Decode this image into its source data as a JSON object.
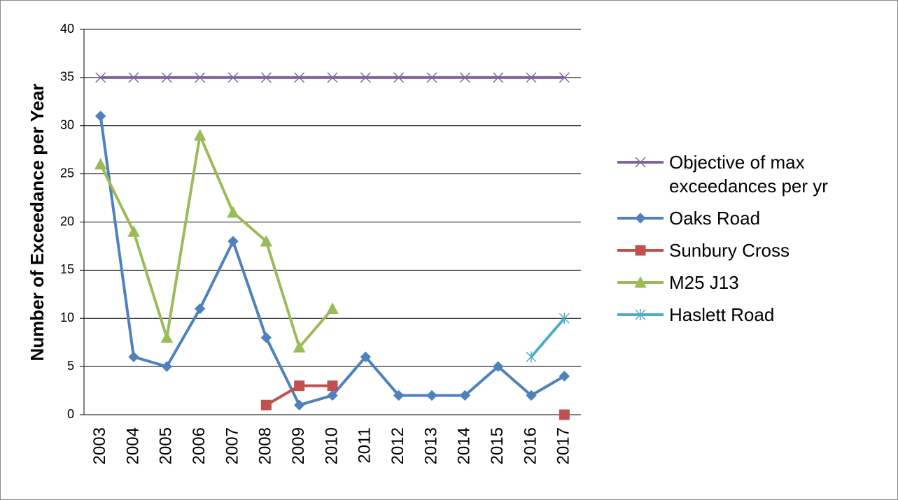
{
  "chart_data": {
    "type": "line",
    "y_label": "Number of Exceedance per Year",
    "categories": [
      "2003",
      "2004",
      "2005",
      "2006",
      "2007",
      "2008",
      "2009",
      "2010",
      "2011",
      "2012",
      "2013",
      "2014",
      "2015",
      "2016",
      "2017"
    ],
    "series": [
      {
        "name": "Objective of max exceedances per yr",
        "color": "#8064a2",
        "marker": "x",
        "values": [
          35,
          35,
          35,
          35,
          35,
          35,
          35,
          35,
          35,
          35,
          35,
          35,
          35,
          35,
          35
        ]
      },
      {
        "name": "Oaks Road",
        "color": "#4f81bd",
        "marker": "diamond",
        "values": [
          31,
          6,
          5,
          11,
          18,
          8,
          1,
          2,
          6,
          2,
          2,
          2,
          5,
          2,
          4
        ]
      },
      {
        "name": "Sunbury Cross",
        "color": "#c0504d",
        "marker": "square",
        "values": [
          null,
          null,
          null,
          null,
          null,
          1,
          3,
          3,
          null,
          null,
          null,
          null,
          null,
          null,
          0
        ]
      },
      {
        "name": "M25 J13",
        "color": "#9bbb59",
        "marker": "triangle",
        "values": [
          26,
          19,
          8,
          29,
          21,
          18,
          7,
          11,
          null,
          null,
          null,
          null,
          null,
          null,
          null
        ]
      },
      {
        "name": "Haslett Road",
        "color": "#4bacc6",
        "marker": "star",
        "values": [
          null,
          null,
          null,
          null,
          null,
          null,
          null,
          null,
          null,
          null,
          null,
          null,
          null,
          6,
          10
        ]
      }
    ],
    "ylim": [
      0,
      40
    ],
    "yticks": [
      0,
      5,
      10,
      15,
      20,
      25,
      30,
      35,
      40
    ],
    "grid": true,
    "legend": "right"
  }
}
